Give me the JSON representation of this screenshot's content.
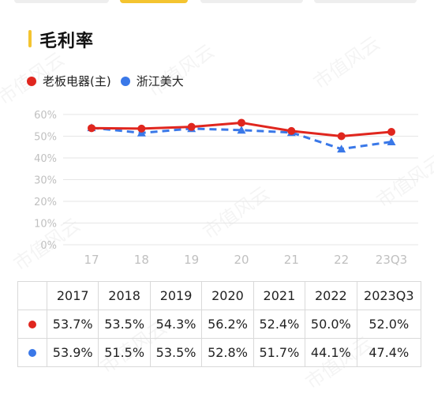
{
  "header": {
    "title": "毛利率"
  },
  "watermark": "市值风云",
  "colors": {
    "accent": "#f4c430",
    "series_red": "#e0261e",
    "series_blue": "#3a78e8",
    "grid": "#e6e6e6",
    "axis_text": "#c0c0c0"
  },
  "chart_data": {
    "type": "line",
    "categories": [
      "17",
      "18",
      "19",
      "20",
      "21",
      "22",
      "23Q3"
    ],
    "y_ticks": [
      "0%",
      "10%",
      "20%",
      "30%",
      "40%",
      "50%",
      "60%"
    ],
    "ylim": [
      0,
      60
    ],
    "grid": true,
    "legend_position": "top-left",
    "series": [
      {
        "name": "老板电器(主)",
        "color": "#e0261e",
        "marker": "circle",
        "line_style": "solid",
        "values": [
          53.7,
          53.5,
          54.3,
          56.2,
          52.4,
          50.0,
          52.0
        ]
      },
      {
        "name": "浙江美大",
        "color": "#3a78e8",
        "marker": "triangle",
        "line_style": "dashed",
        "values": [
          53.9,
          51.5,
          53.5,
          52.8,
          51.7,
          44.1,
          47.4
        ]
      }
    ]
  },
  "table": {
    "headers": [
      "2017",
      "2018",
      "2019",
      "2020",
      "2021",
      "2022",
      "2023Q3"
    ],
    "rows": [
      [
        "53.7%",
        "53.5%",
        "54.3%",
        "56.2%",
        "52.4%",
        "50.0%",
        "52.0%"
      ],
      [
        "53.9%",
        "51.5%",
        "53.5%",
        "52.8%",
        "51.7%",
        "44.1%",
        "47.4%"
      ]
    ]
  }
}
